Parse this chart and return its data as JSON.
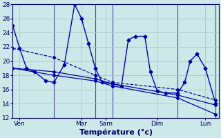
{
  "background_color": "#cce8e8",
  "grid_color": "#aacece",
  "line_color": "#0000aa",
  "xlabel": "Température (°c)",
  "ylim": [
    12,
    28
  ],
  "xlim": [
    0,
    300
  ],
  "yticks": [
    12,
    14,
    16,
    18,
    20,
    22,
    24,
    26,
    28
  ],
  "xtick_positions": [
    10,
    100,
    135,
    210,
    280
  ],
  "xtick_labels": [
    "Ven",
    "Mar",
    "Sam",
    "Dim",
    "Lun"
  ],
  "vline_positions": [
    60,
    120,
    145,
    240,
    295
  ],
  "series_main": {
    "x": [
      0,
      10,
      20,
      32,
      48,
      60,
      75,
      90,
      100,
      110,
      120,
      130,
      145,
      158,
      168,
      178,
      192,
      200,
      210,
      222,
      240,
      250,
      258,
      268,
      280,
      295
    ],
    "y": [
      25.0,
      21.8,
      19.0,
      18.5,
      17.2,
      17.0,
      19.5,
      28.0,
      26.0,
      22.5,
      19.0,
      17.0,
      16.8,
      16.5,
      23.0,
      23.5,
      23.5,
      18.5,
      15.8,
      15.5,
      15.5,
      17.0,
      20.0,
      21.0,
      19.0,
      14.0
    ]
  },
  "series_upper": {
    "x": [
      0,
      60,
      120,
      145,
      240,
      295
    ],
    "y": [
      21.8,
      20.5,
      18.0,
      17.0,
      16.0,
      14.5
    ]
  },
  "series_mid": {
    "x": [
      0,
      60,
      120,
      145,
      240,
      295
    ],
    "y": [
      19.0,
      18.5,
      17.5,
      16.8,
      15.2,
      13.8
    ]
  },
  "series_low": {
    "x": [
      0,
      60,
      120,
      145,
      240,
      295
    ],
    "y": [
      19.0,
      18.0,
      17.2,
      16.5,
      14.8,
      12.5
    ]
  }
}
